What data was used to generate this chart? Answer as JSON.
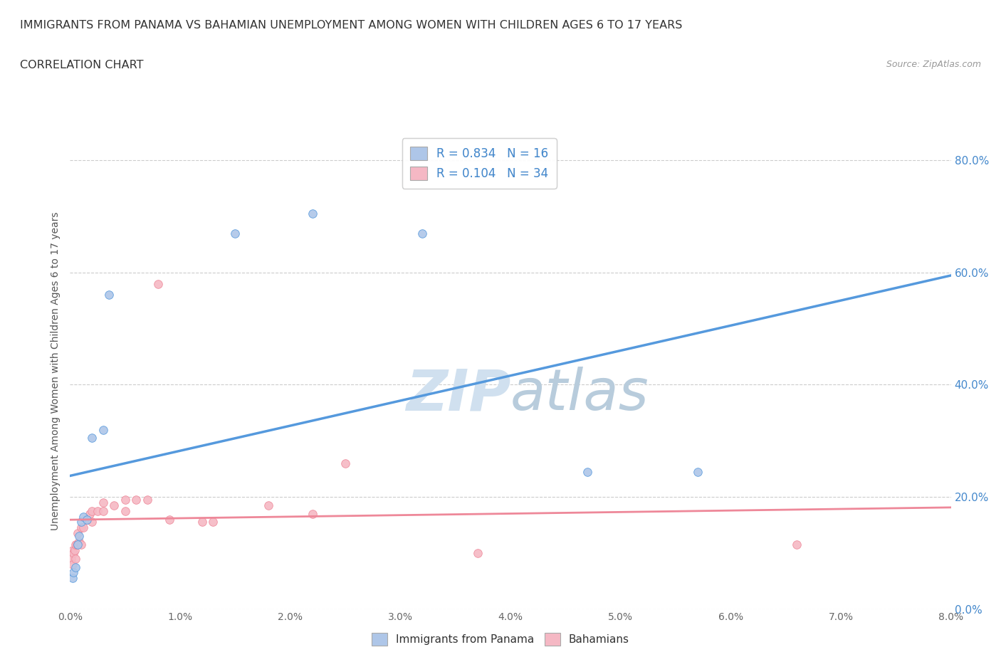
{
  "title": "IMMIGRANTS FROM PANAMA VS BAHAMIAN UNEMPLOYMENT AMONG WOMEN WITH CHILDREN AGES 6 TO 17 YEARS",
  "subtitle": "CORRELATION CHART",
  "source": "Source: ZipAtlas.com",
  "ylabel": "Unemployment Among Women with Children Ages 6 to 17 years",
  "xlim": [
    0.0,
    0.08
  ],
  "ylim": [
    0.0,
    0.85
  ],
  "y_ticks": [
    0.0,
    0.2,
    0.4,
    0.6,
    0.8
  ],
  "y_tick_labels": [
    "0.0%",
    "20.0%",
    "40.0%",
    "60.0%",
    "80.0%"
  ],
  "x_ticks": [
    0.0,
    0.01,
    0.02,
    0.03,
    0.04,
    0.05,
    0.06,
    0.07,
    0.08
  ],
  "blue_R": 0.834,
  "blue_N": 16,
  "pink_R": 0.104,
  "pink_N": 34,
  "blue_color": "#aec6e8",
  "pink_color": "#f5b8c4",
  "blue_line_color": "#5599dd",
  "pink_line_color": "#ee8899",
  "legend_text_color": "#4488cc",
  "watermark_color": "#d0e0ef",
  "blue_points_x": [
    0.0002,
    0.0003,
    0.0005,
    0.0007,
    0.0008,
    0.001,
    0.0012,
    0.0015,
    0.002,
    0.003,
    0.0035,
    0.015,
    0.022,
    0.032,
    0.047,
    0.057
  ],
  "blue_points_y": [
    0.055,
    0.065,
    0.075,
    0.115,
    0.13,
    0.155,
    0.165,
    0.16,
    0.305,
    0.32,
    0.56,
    0.67,
    0.705,
    0.67,
    0.245,
    0.245
  ],
  "pink_points_x": [
    0.0001,
    0.0002,
    0.0002,
    0.0003,
    0.0004,
    0.0005,
    0.0005,
    0.0006,
    0.0007,
    0.0008,
    0.001,
    0.001,
    0.0012,
    0.0015,
    0.0018,
    0.002,
    0.002,
    0.0025,
    0.003,
    0.003,
    0.004,
    0.005,
    0.005,
    0.006,
    0.007,
    0.008,
    0.009,
    0.012,
    0.013,
    0.018,
    0.022,
    0.025,
    0.037,
    0.066
  ],
  "pink_points_y": [
    0.09,
    0.08,
    0.105,
    0.1,
    0.105,
    0.09,
    0.115,
    0.115,
    0.135,
    0.12,
    0.115,
    0.145,
    0.145,
    0.16,
    0.17,
    0.155,
    0.175,
    0.175,
    0.175,
    0.19,
    0.185,
    0.175,
    0.195,
    0.195,
    0.195,
    0.58,
    0.16,
    0.155,
    0.155,
    0.185,
    0.17,
    0.26,
    0.1,
    0.115
  ]
}
